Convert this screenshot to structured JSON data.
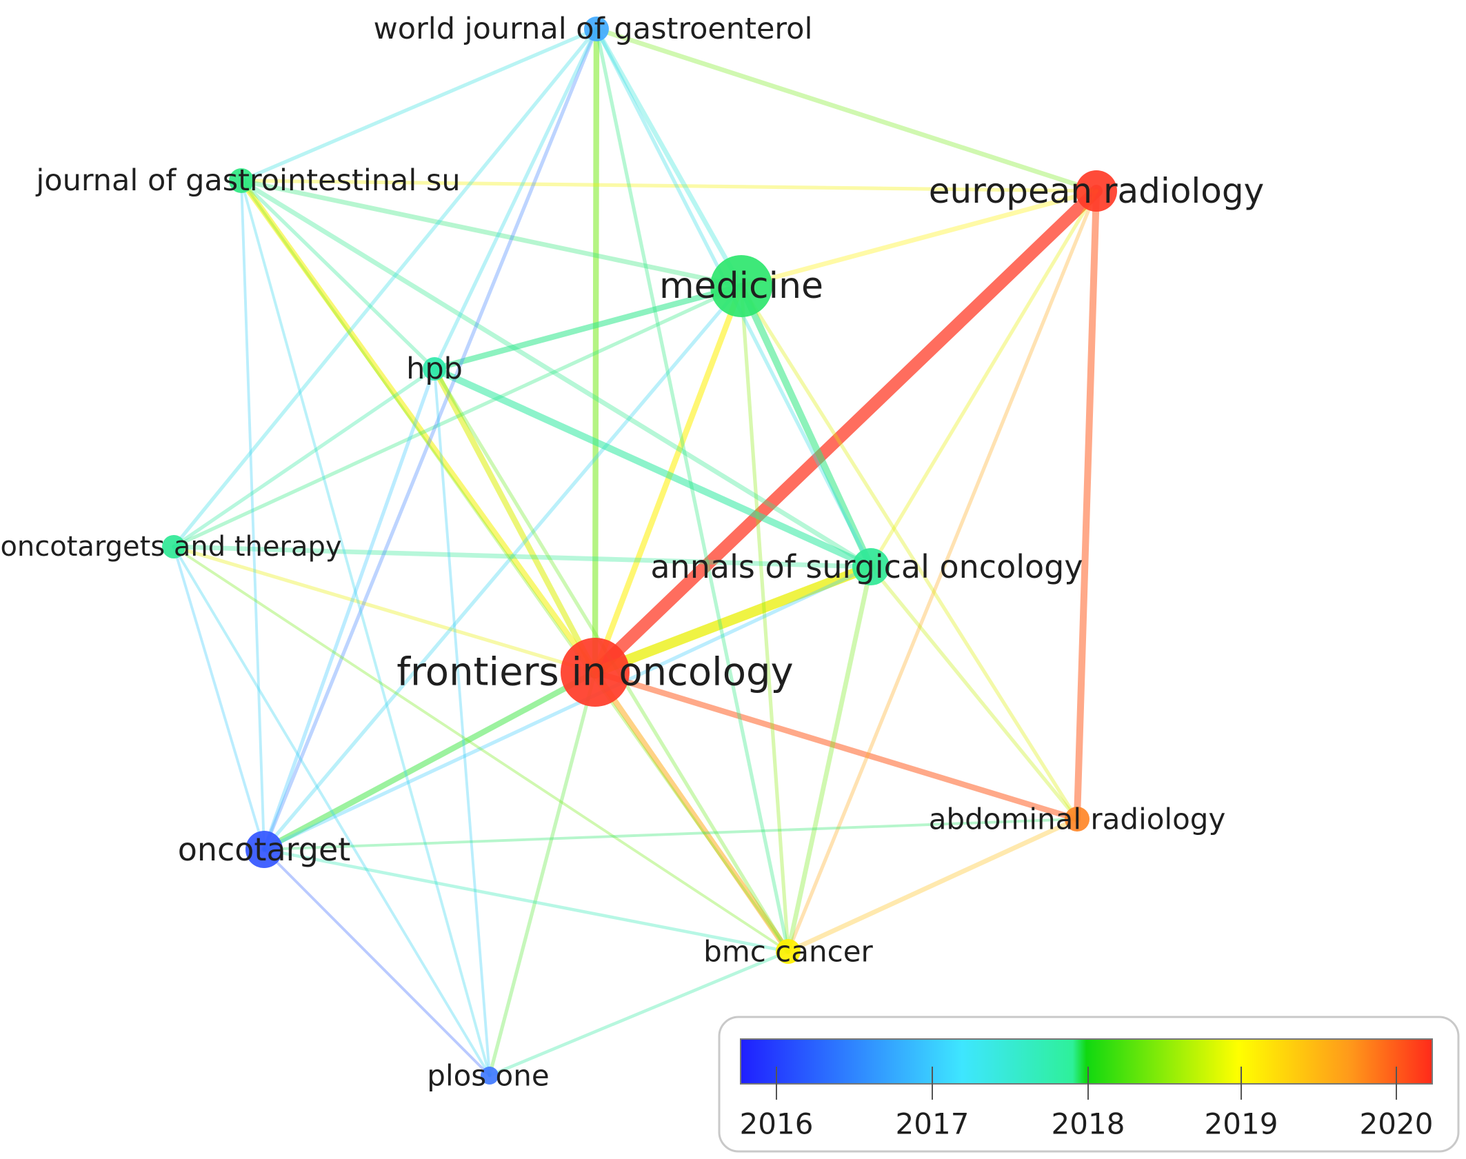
{
  "nodes": [
    {
      "id": "frontiers",
      "label": "frontiers in oncology",
      "year": 2020.0,
      "weight": 10
    },
    {
      "id": "european",
      "label": "european radiology",
      "year": 2020.0,
      "weight": 6
    },
    {
      "id": "medicine",
      "label": "medicine",
      "year": 2018.0,
      "weight": 7
    },
    {
      "id": "annals",
      "label": "annals of surgical oncology",
      "year": 2017.8,
      "weight": 5
    },
    {
      "id": "wjg",
      "label": "world journal of gastroenterol",
      "year": 2016.8,
      "weight": 3
    },
    {
      "id": "jgs",
      "label": "journal of gastrointestinal su",
      "year": 2017.9,
      "weight": 3
    },
    {
      "id": "hpb",
      "label": "hpb",
      "year": 2017.7,
      "weight": 2
    },
    {
      "id": "onco_ther",
      "label": "oncotargets and therapy",
      "year": 2017.8,
      "weight": 2
    },
    {
      "id": "oncotarget",
      "label": "oncotarget",
      "year": 2016.3,
      "weight": 4
    },
    {
      "id": "abdominal",
      "label": "abdominal radiology",
      "year": 2019.7,
      "weight": 3
    },
    {
      "id": "bmc",
      "label": "bmc cancer",
      "year": 2019.0,
      "weight": 3
    },
    {
      "id": "plos",
      "label": "plos one",
      "year": 2016.5,
      "weight": 2
    }
  ],
  "links": [
    [
      "frontiers",
      "european",
      5
    ],
    [
      "frontiers",
      "annals",
      4
    ],
    [
      "frontiers",
      "wjg",
      2
    ],
    [
      "frontiers",
      "jgs",
      2
    ],
    [
      "frontiers",
      "hpb",
      2
    ],
    [
      "frontiers",
      "medicine",
      2
    ],
    [
      "frontiers",
      "onco_ther",
      1
    ],
    [
      "frontiers",
      "oncotarget",
      2
    ],
    [
      "frontiers",
      "abdominal",
      2
    ],
    [
      "frontiers",
      "bmc",
      2
    ],
    [
      "frontiers",
      "plos",
      1
    ],
    [
      "european",
      "wjg",
      1.5
    ],
    [
      "european",
      "jgs",
      1
    ],
    [
      "european",
      "medicine",
      1.5
    ],
    [
      "european",
      "abdominal",
      2.5
    ],
    [
      "european",
      "annals",
      1
    ],
    [
      "european",
      "bmc",
      1
    ],
    [
      "medicine",
      "wjg",
      1.5
    ],
    [
      "medicine",
      "jgs",
      1.5
    ],
    [
      "medicine",
      "hpb",
      2
    ],
    [
      "medicine",
      "onco_ther",
      1
    ],
    [
      "medicine",
      "annals",
      2.5
    ],
    [
      "medicine",
      "bmc",
      1
    ],
    [
      "medicine",
      "abdominal",
      1
    ],
    [
      "medicine",
      "oncotarget",
      1
    ],
    [
      "annals",
      "jgs",
      1.5
    ],
    [
      "annals",
      "hpb",
      2.5
    ],
    [
      "annals",
      "onco_ther",
      1.5
    ],
    [
      "annals",
      "bmc",
      1.5
    ],
    [
      "annals",
      "abdominal",
      1
    ],
    [
      "annals",
      "oncotarget",
      1
    ],
    [
      "annals",
      "wjg",
      1
    ],
    [
      "wjg",
      "jgs",
      1
    ],
    [
      "wjg",
      "onco_ther",
      1
    ],
    [
      "wjg",
      "oncotarget",
      1
    ],
    [
      "wjg",
      "hpb",
      1
    ],
    [
      "wjg",
      "bmc",
      1
    ],
    [
      "jgs",
      "hpb",
      1
    ],
    [
      "jgs",
      "oncotarget",
      0.6
    ],
    [
      "jgs",
      "bmc",
      0.6
    ],
    [
      "jgs",
      "plos",
      0.6
    ],
    [
      "hpb",
      "onco_ther",
      1
    ],
    [
      "hpb",
      "oncotarget",
      1
    ],
    [
      "hpb",
      "bmc",
      1
    ],
    [
      "hpb",
      "plos",
      0.6
    ],
    [
      "onco_ther",
      "oncotarget",
      0.6
    ],
    [
      "onco_ther",
      "bmc",
      0.6
    ],
    [
      "onco_ther",
      "plos",
      0.6
    ],
    [
      "oncotarget",
      "bmc",
      0.8
    ],
    [
      "oncotarget",
      "abdominal",
      0.6
    ],
    [
      "oncotarget",
      "plos",
      0.6
    ],
    [
      "bmc",
      "abdominal",
      1.5
    ],
    [
      "bmc",
      "plos",
      0.8
    ]
  ],
  "legend": {
    "ticks": [
      "2016",
      "2017",
      "2018",
      "2019",
      "2020"
    ],
    "colors": [
      "#1f1fff",
      "#3cc8ff",
      "#2ef280",
      "#18e01a",
      "#ffff00",
      "#ff9a1a",
      "#ff2a1a"
    ]
  }
}
